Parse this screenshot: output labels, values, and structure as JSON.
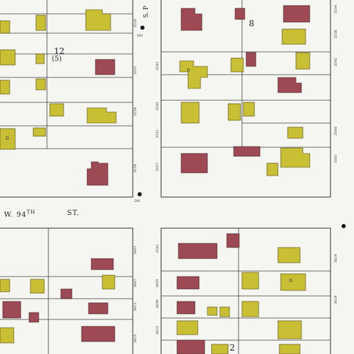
{
  "map": {
    "street_labels": {
      "w94_prefix": "W. 94",
      "w94_suffix": "TH",
      "w94_st": "ST.",
      "s_partial": "S. P"
    },
    "block_labels": {
      "block_12": "12",
      "block_12_sub": "(5)",
      "block_8": "8",
      "block_2": "2"
    },
    "address_labels": [
      "3526",
      "3534",
      "3538",
      "3541",
      "3542",
      "3545",
      "3551",
      "3552",
      "3557",
      "3558",
      "3559",
      "3560",
      "3561",
      "3562",
      "3601",
      "3605",
      "3607",
      "3609",
      "3611",
      "3613",
      "3614",
      "3615",
      "3618"
    ],
    "notes": {
      "dwelling_mark": "D",
      "hydrant": "DH"
    },
    "colors": {
      "brick": "#9e4a55",
      "frame": "#c9bf35",
      "lines": "#2a2a2a",
      "paper": "#f5f5f1"
    }
  }
}
